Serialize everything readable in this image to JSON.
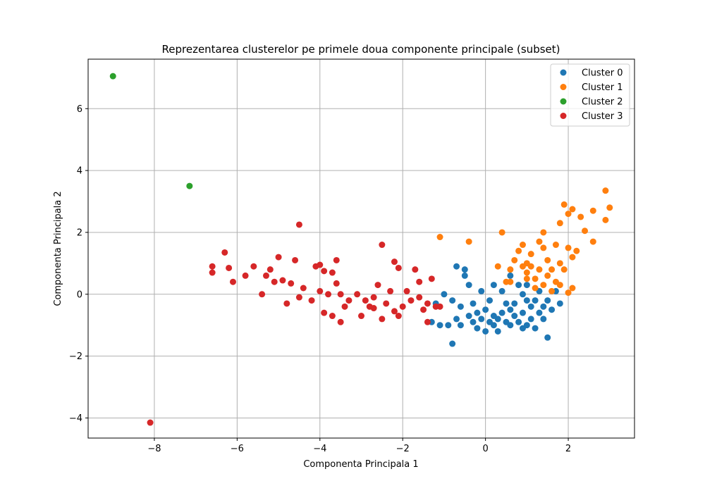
{
  "chart_data": {
    "type": "scatter",
    "title": "Reprezentarea clusterelor pe primele doua componente principale (subset)",
    "xlabel": "Componenta Principala 1",
    "ylabel": "Componenta Principala 2",
    "xlim": [
      -9.6,
      3.6
    ],
    "ylim": [
      -4.65,
      7.6
    ],
    "xticks": [
      -8,
      -6,
      -4,
      -2,
      0,
      2
    ],
    "yticks": [
      -4,
      -2,
      0,
      2,
      4,
      6
    ],
    "xtick_labels": [
      "−8",
      "−6",
      "−4",
      "−2",
      "0",
      "2"
    ],
    "ytick_labels": [
      "−4",
      "−2",
      "0",
      "2",
      "4",
      "6"
    ],
    "grid": true,
    "legend_position": "top-right",
    "series": [
      {
        "name": "Cluster 0",
        "color": "#1f77b4",
        "points": [
          [
            -1.0,
            0.0
          ],
          [
            -1.2,
            -0.3
          ],
          [
            -0.8,
            -0.2
          ],
          [
            -1.1,
            -1.0
          ],
          [
            -0.9,
            -1.0
          ],
          [
            -0.8,
            -1.6
          ],
          [
            -0.7,
            0.9
          ],
          [
            -0.5,
            0.6
          ],
          [
            -0.4,
            0.3
          ],
          [
            -0.5,
            0.8
          ],
          [
            -0.6,
            -0.4
          ],
          [
            -0.3,
            -0.3
          ],
          [
            -0.2,
            -0.6
          ],
          [
            -0.1,
            -0.8
          ],
          [
            0.0,
            -1.2
          ],
          [
            0.1,
            -0.9
          ],
          [
            0.2,
            -1.0
          ],
          [
            0.3,
            -1.2
          ],
          [
            0.2,
            0.3
          ],
          [
            0.4,
            0.1
          ],
          [
            0.5,
            -0.3
          ],
          [
            0.6,
            -0.5
          ],
          [
            0.7,
            -0.7
          ],
          [
            0.8,
            -0.9
          ],
          [
            0.9,
            -1.1
          ],
          [
            1.0,
            -1.0
          ],
          [
            1.1,
            -0.8
          ],
          [
            1.2,
            -1.1
          ],
          [
            1.3,
            -0.6
          ],
          [
            1.4,
            -0.4
          ],
          [
            1.5,
            -0.2
          ],
          [
            1.6,
            -0.5
          ],
          [
            1.5,
            -1.4
          ],
          [
            1.8,
            -0.3
          ],
          [
            1.7,
            0.1
          ],
          [
            0.6,
            0.6
          ],
          [
            0.8,
            0.3
          ],
          [
            0.9,
            0.0
          ],
          [
            1.0,
            -0.2
          ],
          [
            0.7,
            -0.3
          ],
          [
            0.4,
            -0.6
          ],
          [
            0.3,
            -0.8
          ],
          [
            0.5,
            -0.9
          ],
          [
            1.1,
            -0.4
          ],
          [
            1.2,
            -0.2
          ],
          [
            1.3,
            0.1
          ],
          [
            -0.3,
            -0.9
          ],
          [
            -0.6,
            -1.0
          ],
          [
            -0.4,
            -0.7
          ],
          [
            0.0,
            -0.5
          ],
          [
            -0.1,
            0.1
          ],
          [
            0.1,
            -0.2
          ],
          [
            0.6,
            -1.0
          ],
          [
            0.9,
            -0.6
          ],
          [
            1.4,
            -0.8
          ],
          [
            0.2,
            -0.7
          ],
          [
            -0.2,
            -1.1
          ],
          [
            -0.7,
            -0.8
          ],
          [
            -1.3,
            -0.9
          ],
          [
            1.0,
            0.3
          ]
        ]
      },
      {
        "name": "Cluster 1",
        "color": "#ff7f0e",
        "points": [
          [
            -1.1,
            1.85
          ],
          [
            -0.4,
            1.7
          ],
          [
            0.3,
            0.9
          ],
          [
            0.4,
            2.0
          ],
          [
            0.5,
            0.4
          ],
          [
            0.6,
            0.8
          ],
          [
            0.7,
            1.1
          ],
          [
            0.8,
            1.4
          ],
          [
            0.9,
            1.6
          ],
          [
            1.0,
            0.7
          ],
          [
            1.1,
            0.9
          ],
          [
            1.2,
            0.5
          ],
          [
            1.3,
            1.7
          ],
          [
            1.4,
            2.0
          ],
          [
            1.5,
            1.1
          ],
          [
            1.6,
            0.8
          ],
          [
            1.7,
            1.6
          ],
          [
            1.8,
            2.3
          ],
          [
            1.9,
            2.9
          ],
          [
            2.0,
            2.6
          ],
          [
            2.1,
            2.75
          ],
          [
            2.0,
            1.5
          ],
          [
            2.1,
            1.2
          ],
          [
            2.2,
            1.4
          ],
          [
            2.3,
            2.5
          ],
          [
            2.4,
            2.05
          ],
          [
            2.6,
            2.7
          ],
          [
            2.6,
            1.7
          ],
          [
            2.9,
            2.4
          ],
          [
            2.9,
            3.35
          ],
          [
            3.0,
            2.8
          ],
          [
            2.0,
            0.05
          ],
          [
            2.1,
            0.2
          ],
          [
            1.8,
            0.3
          ],
          [
            1.6,
            0.1
          ],
          [
            1.4,
            0.3
          ],
          [
            1.2,
            0.2
          ],
          [
            1.0,
            0.5
          ],
          [
            0.9,
            0.9
          ],
          [
            1.1,
            1.3
          ],
          [
            1.3,
            0.8
          ],
          [
            1.5,
            0.6
          ],
          [
            1.7,
            0.4
          ],
          [
            1.9,
            0.8
          ],
          [
            1.8,
            1.0
          ],
          [
            1.4,
            1.5
          ],
          [
            1.0,
            1.0
          ],
          [
            0.6,
            0.4
          ]
        ]
      },
      {
        "name": "Cluster 2",
        "color": "#2ca02c",
        "points": [
          [
            -9.0,
            7.05
          ],
          [
            -7.15,
            3.5
          ]
        ]
      },
      {
        "name": "Cluster 3",
        "color": "#d62728",
        "points": [
          [
            -8.1,
            -4.15
          ],
          [
            -6.6,
            0.9
          ],
          [
            -6.6,
            0.7
          ],
          [
            -6.3,
            1.35
          ],
          [
            -6.2,
            0.85
          ],
          [
            -6.1,
            0.4
          ],
          [
            -5.8,
            0.6
          ],
          [
            -5.6,
            0.9
          ],
          [
            -5.4,
            0.0
          ],
          [
            -5.3,
            0.6
          ],
          [
            -5.2,
            0.8
          ],
          [
            -5.1,
            0.4
          ],
          [
            -5.0,
            1.2
          ],
          [
            -4.9,
            0.45
          ],
          [
            -4.8,
            -0.3
          ],
          [
            -4.7,
            0.35
          ],
          [
            -4.6,
            1.1
          ],
          [
            -4.5,
            -0.1
          ],
          [
            -4.5,
            2.25
          ],
          [
            -4.4,
            0.2
          ],
          [
            -4.2,
            -0.2
          ],
          [
            -4.1,
            0.9
          ],
          [
            -4.0,
            0.1
          ],
          [
            -3.9,
            0.75
          ],
          [
            -3.9,
            -0.6
          ],
          [
            -3.8,
            0.0
          ],
          [
            -3.7,
            0.7
          ],
          [
            -3.6,
            1.1
          ],
          [
            -3.6,
            0.35
          ],
          [
            -3.5,
            -0.9
          ],
          [
            -3.4,
            -0.4
          ],
          [
            -3.3,
            -0.2
          ],
          [
            -3.1,
            0.0
          ],
          [
            -3.0,
            -0.7
          ],
          [
            -2.9,
            -0.2
          ],
          [
            -2.8,
            -0.4
          ],
          [
            -2.7,
            -0.45
          ],
          [
            -2.6,
            0.3
          ],
          [
            -2.5,
            1.6
          ],
          [
            -2.5,
            -0.8
          ],
          [
            -2.4,
            -0.3
          ],
          [
            -2.3,
            0.1
          ],
          [
            -2.2,
            1.05
          ],
          [
            -2.1,
            0.85
          ],
          [
            -2.1,
            -0.7
          ],
          [
            -2.0,
            -0.4
          ],
          [
            -1.9,
            0.1
          ],
          [
            -1.8,
            -0.2
          ],
          [
            -1.7,
            0.8
          ],
          [
            -1.6,
            0.4
          ],
          [
            -1.5,
            -0.5
          ],
          [
            -1.4,
            -0.9
          ],
          [
            -1.3,
            0.5
          ],
          [
            -1.2,
            -0.4
          ],
          [
            -1.6,
            -0.1
          ],
          [
            -2.7,
            -0.1
          ],
          [
            -3.5,
            0.0
          ],
          [
            -4.0,
            0.95
          ],
          [
            -3.7,
            -0.7
          ],
          [
            -2.2,
            -0.55
          ],
          [
            -1.4,
            -0.3
          ],
          [
            -1.1,
            -0.4
          ]
        ]
      }
    ]
  }
}
